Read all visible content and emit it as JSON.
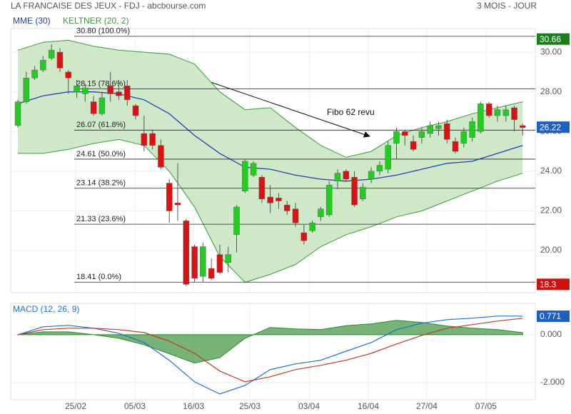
{
  "chart_data": [
    {
      "type": "candlestick",
      "title": "LA FRANCAISE DES JEUX - FDJ - abcbourse.com",
      "subtitle": "3 MOIS - JOUR",
      "annotation": "Fibo 62 revu",
      "x": [
        0,
        1,
        2,
        3,
        4,
        5,
        6,
        7,
        8,
        9,
        10,
        11,
        12,
        13,
        14,
        15,
        16,
        17,
        18,
        19,
        20,
        21,
        22,
        23,
        24,
        25,
        26,
        27,
        28,
        29,
        30,
        31,
        32,
        33,
        34,
        35,
        36,
        37,
        38,
        39,
        40,
        41,
        42,
        43,
        44,
        45,
        46,
        47,
        48,
        49,
        50,
        51,
        52,
        53,
        54,
        55,
        56,
        57,
        58,
        59,
        60
      ],
      "open": [
        26.3,
        27.5,
        28.7,
        29.1,
        29.7,
        30.0,
        29.0,
        28.0,
        27.9,
        27.5,
        26.9,
        28.3,
        28.0,
        28.3,
        27.3,
        25.9,
        25.9,
        25.3,
        23.4,
        22.4,
        21.5,
        20.2,
        18.7,
        19.1,
        19.8,
        19.4,
        20.8,
        23.0,
        23.8,
        23.7,
        22.7,
        22.65,
        22.3,
        22.1,
        20.9,
        21.0,
        21.7,
        21.8,
        23.5,
        24.0,
        23.7,
        22.6,
        23.6,
        24.0,
        24.1,
        25.4,
        26.0,
        25.5,
        25.7,
        25.9,
        26.15,
        26.4,
        25.5,
        25.4,
        25.7,
        26.0,
        27.4,
        26.8,
        26.8,
        27.2,
        26.3
      ],
      "high": [
        27.6,
        29.0,
        29.3,
        29.8,
        30.4,
        30.2,
        29.1,
        28.6,
        28.4,
        27.8,
        28.0,
        29.0,
        28.6,
        28.6,
        27.4,
        26.8,
        26.1,
        25.6,
        23.6,
        24.4,
        21.6,
        20.3,
        20.4,
        19.6,
        20.3,
        20.2,
        22.3,
        24.6,
        24.5,
        23.8,
        23.3,
        22.9,
        22.5,
        22.4,
        21.3,
        21.5,
        22.2,
        23.5,
        24.1,
        24.1,
        24.0,
        23.4,
        24.2,
        24.5,
        25.5,
        26.2,
        26.1,
        25.8,
        26.2,
        26.5,
        26.5,
        26.6,
        25.7,
        26.2,
        26.7,
        27.5,
        27.5,
        27.3,
        27.3,
        27.3,
        26.4
      ],
      "low": [
        26.2,
        27.4,
        28.6,
        29.0,
        29.6,
        29.0,
        27.9,
        27.7,
        27.5,
        26.8,
        26.8,
        27.5,
        27.6,
        27.3,
        26.6,
        25.0,
        25.1,
        24.1,
        21.4,
        21.5,
        18.2,
        18.4,
        18.4,
        18.5,
        18.8,
        18.9,
        19.9,
        22.9,
        23.7,
        22.4,
        21.9,
        22.1,
        21.8,
        21.2,
        20.3,
        20.9,
        21.5,
        21.7,
        23.1,
        23.5,
        22.2,
        22.5,
        23.4,
        23.8,
        23.9,
        24.6,
        25.3,
        25.0,
        25.4,
        25.7,
        25.8,
        25.4,
        24.9,
        25.2,
        25.5,
        25.9,
        26.7,
        26.5,
        26.5,
        26.0,
        25.8
      ],
      "close": [
        27.5,
        28.7,
        29.1,
        29.6,
        30.1,
        29.2,
        28.7,
        28.3,
        28.2,
        26.9,
        27.7,
        27.9,
        27.8,
        27.6,
        26.8,
        25.3,
        25.3,
        24.2,
        22.0,
        22.3,
        18.3,
        18.6,
        20.2,
        18.6,
        18.9,
        19.8,
        22.2,
        24.5,
        24.4,
        22.6,
        22.4,
        22.5,
        22.0,
        21.4,
        20.5,
        21.4,
        22.1,
        23.3,
        23.9,
        23.6,
        22.3,
        23.2,
        24.0,
        24.3,
        25.3,
        26.0,
        25.8,
        25.1,
        26.0,
        26.3,
        26.3,
        25.6,
        25.0,
        26.0,
        26.5,
        27.4,
        26.8,
        27.1,
        27.1,
        26.6,
        26.2
      ],
      "up_color": "#22cc22",
      "down_color": "#dd1111",
      "series": [
        {
          "name": "MME (30)",
          "color": "#1f3fbf",
          "x": [
            0,
            3,
            6,
            9,
            12,
            15,
            18,
            21,
            24,
            27,
            30,
            33,
            36,
            39,
            42,
            45,
            48,
            51,
            54,
            57,
            60
          ],
          "values": [
            27.4,
            27.8,
            28.0,
            28.0,
            27.9,
            27.6,
            26.9,
            25.8,
            24.9,
            24.2,
            24.1,
            23.8,
            23.6,
            23.5,
            23.6,
            23.8,
            24.1,
            24.4,
            24.5,
            24.9,
            25.3
          ]
        },
        {
          "name": "KELTNER (20, 2)",
          "color": "#3a9a3a",
          "fill": "#cfe8c8",
          "x": [
            0,
            3,
            6,
            9,
            12,
            15,
            18,
            21,
            24,
            27,
            30,
            33,
            36,
            39,
            42,
            45,
            48,
            51,
            54,
            57,
            60
          ],
          "upper": [
            30.1,
            30.5,
            30.6,
            30.3,
            30.1,
            30.0,
            29.9,
            29.4,
            28.0,
            27.1,
            27.2,
            26.2,
            25.3,
            24.7,
            25.0,
            25.8,
            26.2,
            26.5,
            26.9,
            27.2,
            27.5
          ],
          "lower": [
            24.9,
            24.9,
            25.1,
            25.4,
            25.6,
            25.3,
            24.0,
            22.2,
            19.7,
            18.4,
            18.8,
            19.3,
            20.2,
            20.8,
            21.2,
            21.7,
            22.0,
            22.5,
            23.0,
            23.5,
            23.9
          ]
        }
      ],
      "fibonacci": [
        {
          "value": 30.8,
          "label": "30.80  (100.0%)"
        },
        {
          "value": 28.15,
          "label": "28.15  (78.6%)"
        },
        {
          "value": 26.07,
          "label": "26.07  (61.8%)"
        },
        {
          "value": 24.61,
          "label": "24.61  (50.0%)"
        },
        {
          "value": 23.14,
          "label": "23.14  (38.2%)"
        },
        {
          "value": 21.33,
          "label": "21.33  (23.6%)"
        },
        {
          "value": 18.41,
          "label": "18.41  (0.0%)"
        }
      ],
      "markers": [
        {
          "value": 30.66,
          "color": "#1a7f1a"
        },
        {
          "value": 26.22,
          "color": "#1f5fbf"
        },
        {
          "value": 18.3,
          "color": "#cc1111"
        }
      ],
      "xlim": [
        -0.85,
        61.5
      ],
      "ylim": [
        17.88,
        31.19
      ],
      "yticks": [
        {
          "value": 20,
          "label": "20.00"
        },
        {
          "value": 22,
          "label": "22.00"
        },
        {
          "value": 24,
          "label": "24.00"
        },
        {
          "value": 26,
          "label": "26.00"
        },
        {
          "value": 28,
          "label": "28.00"
        },
        {
          "value": 30,
          "label": "30.00"
        }
      ],
      "grid": true
    },
    {
      "type": "line",
      "x": [
        0,
        3,
        6,
        9,
        12,
        15,
        18,
        21,
        24,
        27,
        30,
        33,
        36,
        39,
        42,
        45,
        48,
        51,
        54,
        57,
        60
      ],
      "series": [
        {
          "name": "MACD (12, 26, 9)",
          "color": "#1f6fd0",
          "values": [
            0,
            0.33,
            0.39,
            0.27,
            0.06,
            -0.33,
            -1.07,
            -1.97,
            -2.48,
            -2.12,
            -1.46,
            -1.22,
            -1.07,
            -0.69,
            -0.33,
            0.21,
            0.48,
            0.63,
            0.69,
            0.78,
            0.78
          ]
        },
        {
          "color": "#c0392b",
          "values": [
            0,
            0.21,
            0.27,
            0.27,
            0.21,
            0.09,
            -0.27,
            -0.78,
            -1.52,
            -1.97,
            -1.76,
            -1.46,
            -1.28,
            -1.07,
            -0.78,
            -0.39,
            -0.03,
            0.27,
            0.42,
            0.57,
            0.69
          ]
        },
        {
          "color": "#2e8b2e",
          "style": "area",
          "values": [
            0,
            0.12,
            0.12,
            0,
            -0.15,
            -0.42,
            -0.8,
            -1.19,
            -0.96,
            -0.15,
            0.3,
            0.24,
            0.21,
            0.38,
            0.45,
            0.6,
            0.51,
            0.36,
            0.27,
            0.21,
            0.09
          ]
        }
      ],
      "markers": [
        {
          "value": 0.771,
          "color": "#1f5fbf"
        }
      ],
      "xlim": [
        -0.85,
        61.5
      ],
      "ylim": [
        -2.72,
        1.31
      ],
      "yticks": [
        {
          "value": -2,
          "label": "-2.000"
        },
        {
          "value": 0,
          "label": "0.000"
        }
      ],
      "xticks": [
        {
          "value": 6.87,
          "label": "25/02"
        },
        {
          "value": 13.91,
          "label": "05/03"
        },
        {
          "value": 20.87,
          "label": "16/03"
        },
        {
          "value": 27.57,
          "label": "25/03"
        },
        {
          "value": 34.61,
          "label": "03/04"
        },
        {
          "value": 41.65,
          "label": "16/04"
        },
        {
          "value": 48.6,
          "label": "27/04"
        },
        {
          "value": 55.64,
          "label": "07/05"
        }
      ],
      "grid": true
    }
  ]
}
